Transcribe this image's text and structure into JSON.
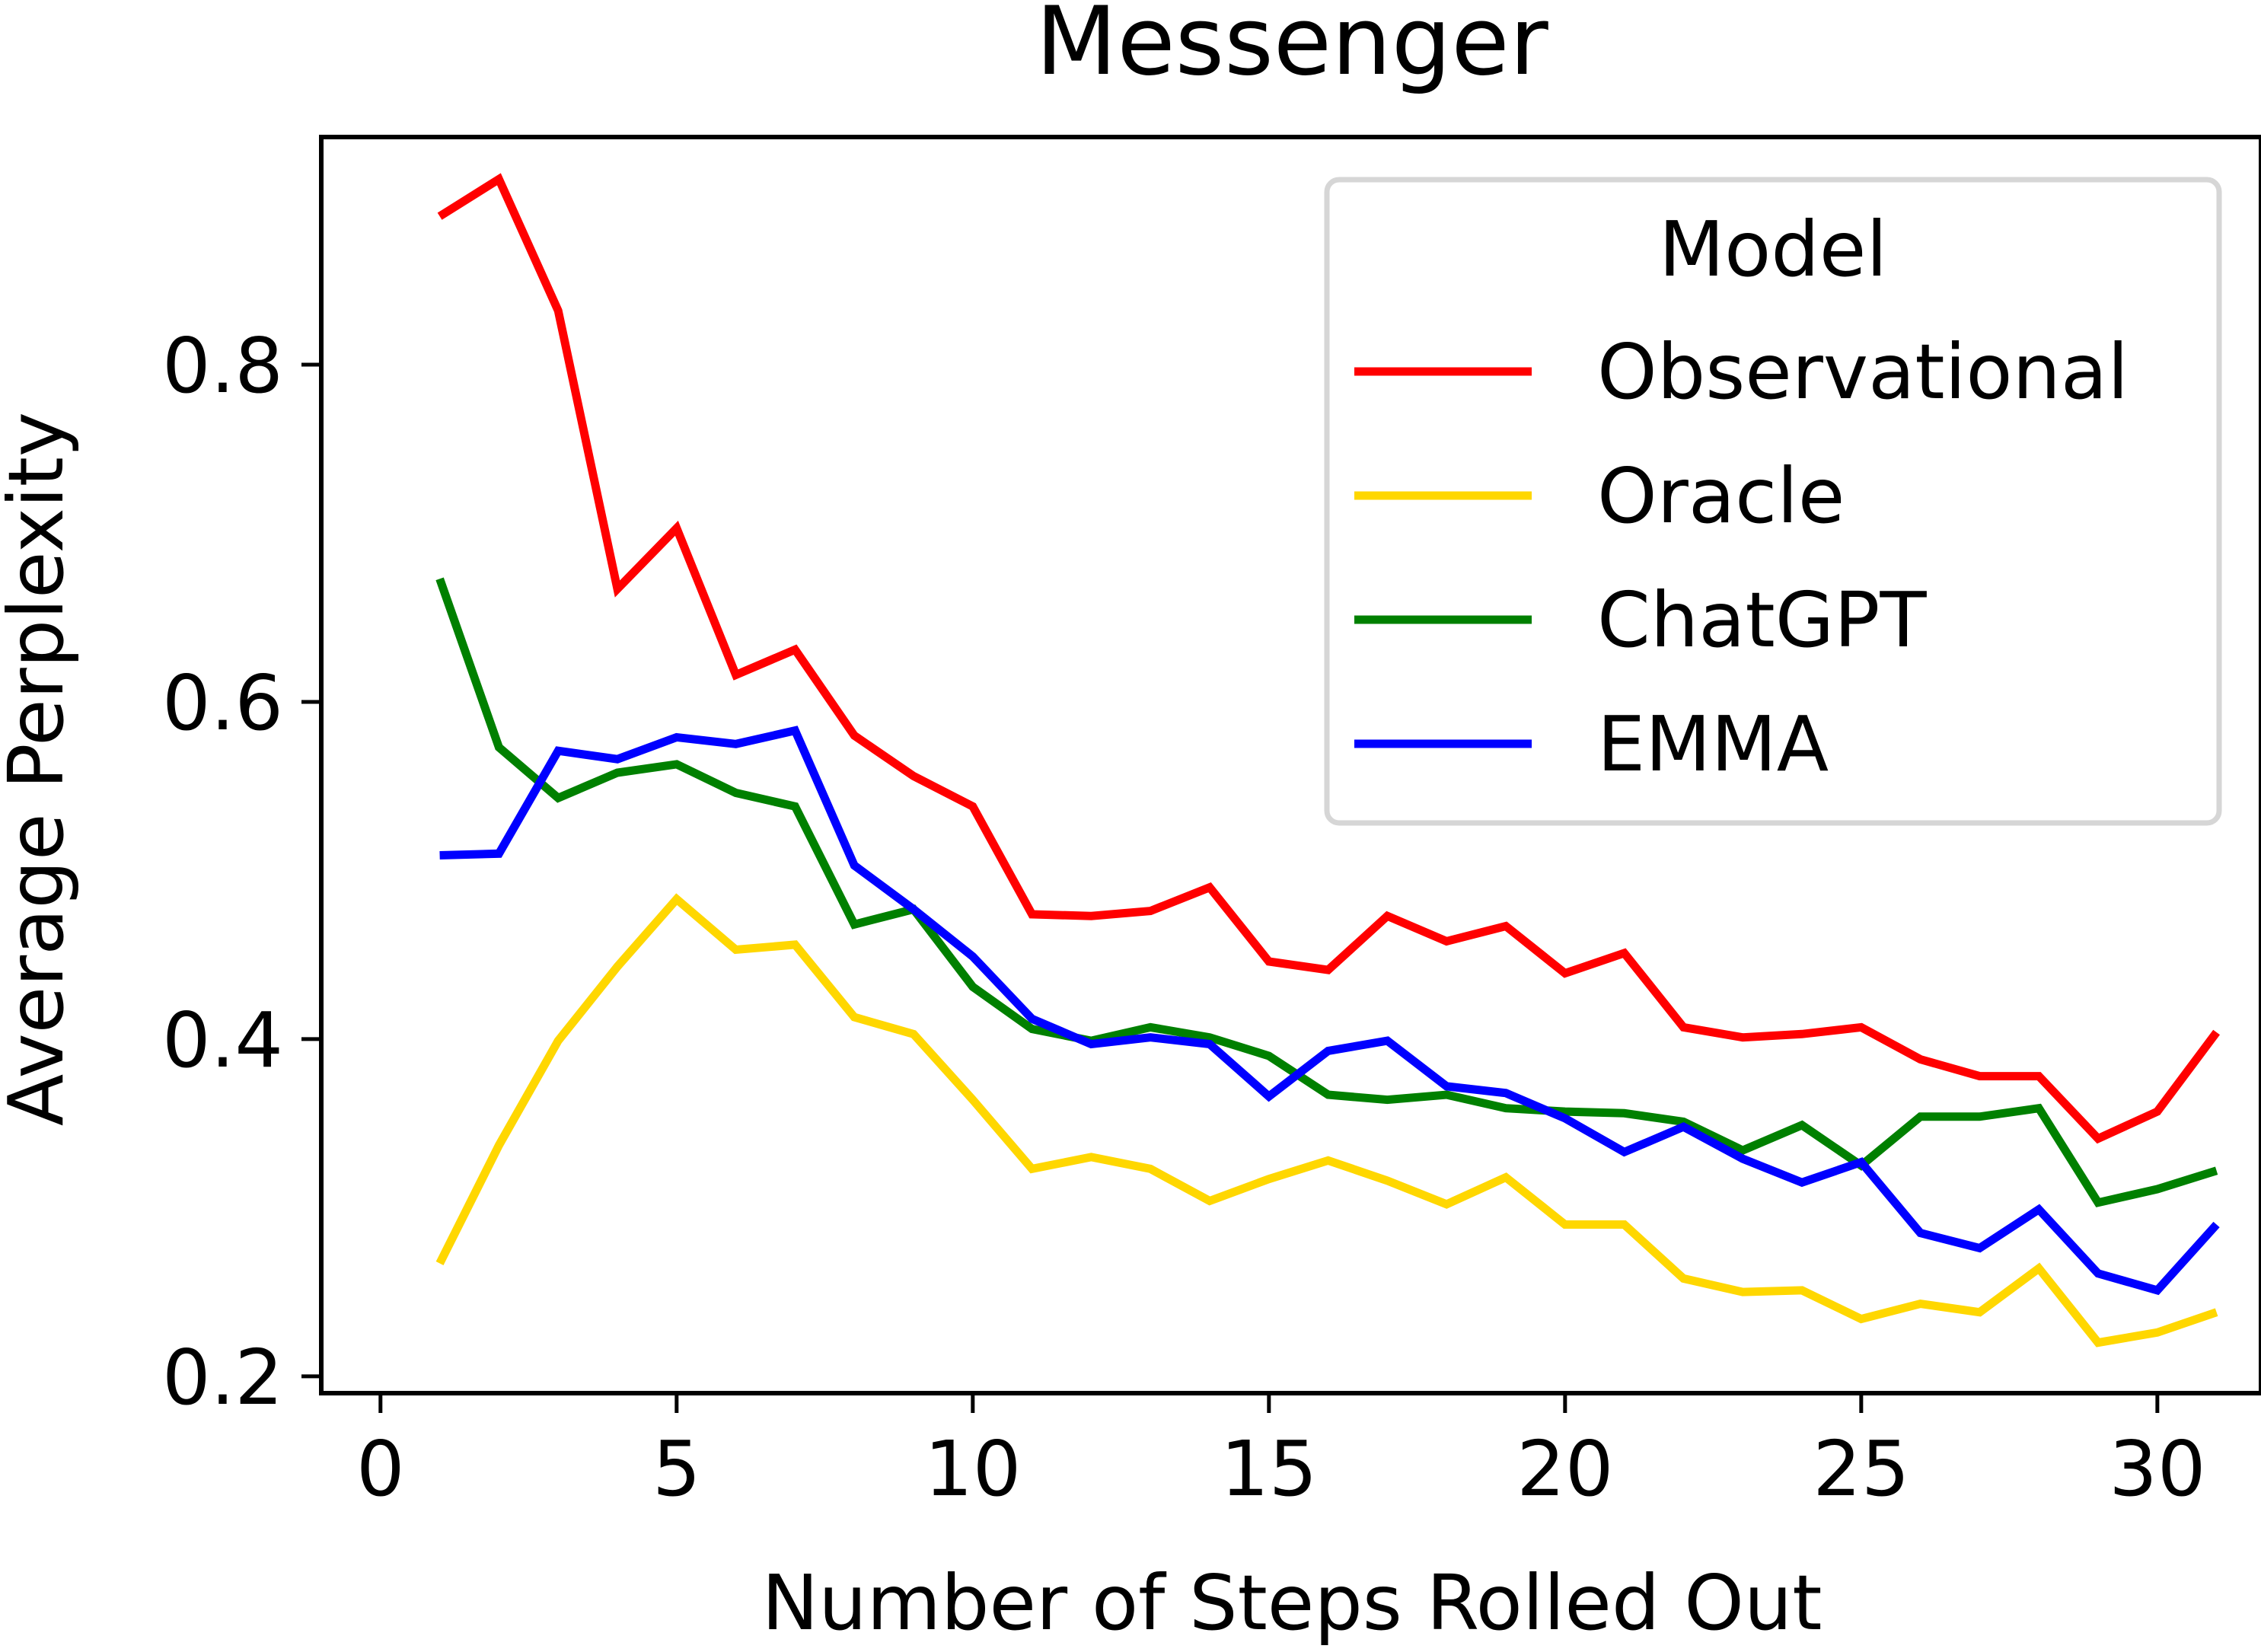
{
  "chart_data": {
    "type": "line",
    "title": "Messenger",
    "xlabel": "Number of Steps Rolled Out",
    "ylabel": "Average Perplexity",
    "xlim": [
      -1,
      31.75
    ],
    "ylim": [
      0.19,
      0.935
    ],
    "xticks": [
      0,
      5,
      10,
      15,
      20,
      25,
      30
    ],
    "xtick_labels": [
      "0",
      "5",
      "10",
      "15",
      "20",
      "25",
      "30"
    ],
    "yticks": [
      0.2,
      0.4,
      0.6,
      0.8
    ],
    "ytick_labels": [
      "0.2",
      "0.4",
      "0.6",
      "0.8"
    ],
    "grid": false,
    "legend": {
      "title": "Model",
      "placement": "top-right"
    },
    "x": [
      1,
      2,
      3,
      4,
      5,
      6,
      7,
      8,
      9,
      10,
      11,
      12,
      13,
      14,
      15,
      16,
      17,
      18,
      19,
      20,
      21,
      22,
      23,
      24,
      25,
      26,
      27,
      28,
      29,
      30,
      31
    ],
    "series": [
      {
        "name": "Observational",
        "color": "#ff0000",
        "values": [
          0.888,
          0.91,
          0.832,
          0.667,
          0.703,
          0.616,
          0.631,
          0.58,
          0.556,
          0.538,
          0.474,
          0.473,
          0.476,
          0.49,
          0.446,
          0.441,
          0.473,
          0.458,
          0.467,
          0.439,
          0.451,
          0.407,
          0.401,
          0.403,
          0.407,
          0.388,
          0.378,
          0.378,
          0.341,
          0.357,
          0.404
        ]
      },
      {
        "name": "Oracle",
        "color": "#ffd700",
        "values": [
          0.267,
          0.337,
          0.399,
          0.443,
          0.483,
          0.453,
          0.456,
          0.413,
          0.403,
          0.364,
          0.323,
          0.33,
          0.323,
          0.304,
          0.317,
          0.328,
          0.316,
          0.302,
          0.318,
          0.29,
          0.29,
          0.258,
          0.25,
          0.251,
          0.234,
          0.243,
          0.238,
          0.264,
          0.22,
          0.226,
          0.238
        ]
      },
      {
        "name": "ChatGPT",
        "color": "#008000",
        "values": [
          0.673,
          0.573,
          0.543,
          0.558,
          0.563,
          0.546,
          0.538,
          0.468,
          0.477,
          0.431,
          0.406,
          0.399,
          0.407,
          0.401,
          0.39,
          0.367,
          0.364,
          0.367,
          0.359,
          0.357,
          0.356,
          0.351,
          0.334,
          0.349,
          0.325,
          0.354,
          0.354,
          0.359,
          0.303,
          0.311,
          0.322
        ]
      },
      {
        "name": "EMMA",
        "color": "#0000ff",
        "values": [
          0.509,
          0.51,
          0.571,
          0.566,
          0.579,
          0.575,
          0.583,
          0.503,
          0.477,
          0.449,
          0.412,
          0.397,
          0.401,
          0.397,
          0.366,
          0.393,
          0.399,
          0.372,
          0.368,
          0.353,
          0.333,
          0.348,
          0.329,
          0.315,
          0.327,
          0.285,
          0.276,
          0.299,
          0.261,
          0.251,
          0.29
        ]
      }
    ]
  }
}
